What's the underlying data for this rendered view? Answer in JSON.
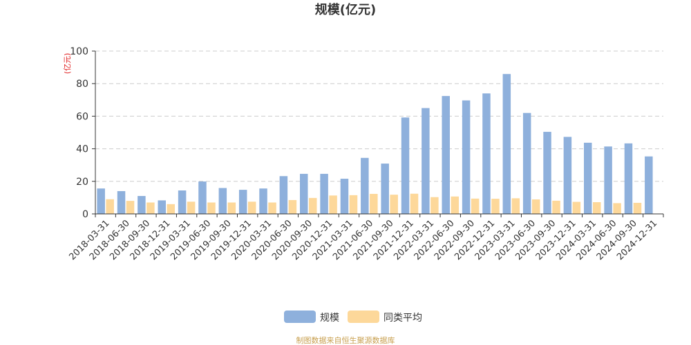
{
  "chart_data": {
    "type": "bar",
    "title": "规模(亿元)",
    "ylabel": "(亿元)",
    "xlabel": "",
    "ylim": [
      0,
      100
    ],
    "yticks": [
      0,
      20,
      40,
      60,
      80,
      100
    ],
    "grid": true,
    "legend_position": "bottom",
    "categories": [
      "2018-03-31",
      "2018-06-30",
      "2018-09-30",
      "2018-12-31",
      "2019-03-31",
      "2019-06-30",
      "2019-09-30",
      "2019-12-31",
      "2020-03-31",
      "2020-06-30",
      "2020-09-30",
      "2020-12-31",
      "2021-03-31",
      "2021-06-30",
      "2021-09-30",
      "2021-12-31",
      "2022-03-31",
      "2022-06-30",
      "2022-09-30",
      "2022-12-31",
      "2023-03-31",
      "2023-06-30",
      "2023-09-30",
      "2023-12-31",
      "2024-03-31",
      "2024-06-30",
      "2024-09-30",
      "2024-12-31"
    ],
    "series": [
      {
        "name": "规模",
        "color": "#8eb0dc",
        "values": [
          15.6,
          14.0,
          11.0,
          8.3,
          14.4,
          19.9,
          15.9,
          14.8,
          15.6,
          23.2,
          24.6,
          24.6,
          21.6,
          34.4,
          30.9,
          59.2,
          65.0,
          72.4,
          69.7,
          74.0,
          85.9,
          62.0,
          50.4,
          47.3,
          43.7,
          41.4,
          43.3,
          35.3
        ]
      },
      {
        "name": "同类平均",
        "color": "#fdd89a",
        "values": [
          9.0,
          8.0,
          7.0,
          6.0,
          7.5,
          7.0,
          7.0,
          7.5,
          7.0,
          8.5,
          9.8,
          11.3,
          11.5,
          12.3,
          11.8,
          12.4,
          10.3,
          10.7,
          9.4,
          9.3,
          9.6,
          8.9,
          8.1,
          7.4,
          7.2,
          6.6,
          6.8,
          null
        ]
      }
    ]
  },
  "source_note": "制图数据来自恒生聚源数据库"
}
